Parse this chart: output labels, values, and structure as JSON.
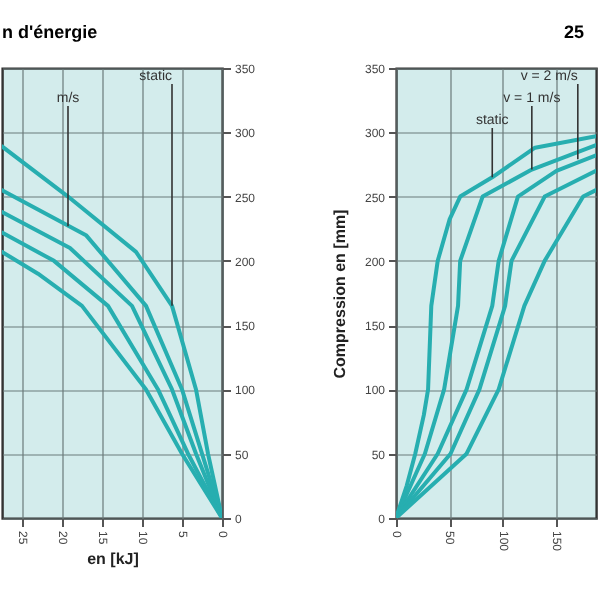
{
  "chart_data": [
    {
      "type": "line",
      "title": "n d'énergie",
      "xlabel": "en [kJ]",
      "xlim": [
        27.5,
        0
      ],
      "ylim": [
        0,
        350
      ],
      "xticks": [
        25,
        20,
        15,
        10,
        5,
        0
      ],
      "yticks": [
        0,
        50,
        100,
        150,
        200,
        250,
        300,
        350
      ],
      "grid": true,
      "series": [
        {
          "color": "#27aeb0",
          "x": [
            0,
            1.75,
            3.25,
            6.25,
            10.75,
            19.25,
            27.5
          ],
          "values": [
            0,
            50,
            100,
            165,
            207,
            250,
            289
          ]
        },
        {
          "color": "#27aeb0",
          "x": [
            0,
            2.5,
            5,
            9.5,
            17,
            27.5
          ],
          "values": [
            0,
            50,
            100,
            165,
            220,
            255
          ]
        },
        {
          "color": "#27aeb0",
          "x": [
            0,
            3.25,
            6.25,
            11.25,
            19,
            27.5
          ],
          "values": [
            0,
            50,
            100,
            165,
            210,
            238
          ]
        },
        {
          "color": "#27aeb0",
          "x": [
            0,
            4.25,
            8,
            14.25,
            21,
            27.5
          ],
          "values": [
            0,
            50,
            100,
            165,
            200,
            222
          ]
        },
        {
          "color": "#27aeb0",
          "x": [
            0,
            5,
            9.5,
            17.5,
            23,
            27.5
          ],
          "values": [
            0,
            50,
            100,
            165,
            190,
            207
          ]
        }
      ],
      "annotations": [
        {
          "text": "m/s",
          "x": 19.25,
          "y": 227
        },
        {
          "text": "static",
          "x": 6.25,
          "y": 165
        }
      ]
    },
    {
      "type": "line",
      "title": "25",
      "ylabel": "Compression en [mm]",
      "xlim": [
        0,
        187
      ],
      "ylim": [
        0,
        350
      ],
      "xticks": [
        0,
        50,
        100,
        150
      ],
      "yticks": [
        0,
        50,
        100,
        150,
        200,
        250,
        300,
        350
      ],
      "grid": true,
      "series": [
        {
          "color": "#27aeb0",
          "x": [
            0,
            10,
            18,
            26,
            30,
            33,
            39,
            50,
            60,
            90,
            130,
            187
          ],
          "values": [
            0,
            25,
            50,
            80,
            100,
            165,
            200,
            232,
            250,
            265,
            288,
            297
          ]
        },
        {
          "color": "#27aeb0",
          "x": [
            0,
            27,
            45,
            58,
            60,
            81,
            127,
            187
          ],
          "values": [
            0,
            50,
            100,
            165,
            200,
            250,
            271,
            290
          ]
        },
        {
          "color": "#27aeb0",
          "x": [
            0,
            39,
            66,
            90,
            96,
            114,
            150,
            187
          ],
          "values": [
            0,
            50,
            100,
            165,
            200,
            250,
            270,
            282
          ]
        },
        {
          "color": "#27aeb0",
          "x": [
            0,
            51,
            78,
            102,
            108,
            139,
            187
          ],
          "values": [
            0,
            50,
            100,
            165,
            200,
            250,
            270
          ]
        },
        {
          "color": "#27aeb0",
          "x": [
            0,
            66,
            96,
            120,
            139,
            175,
            187
          ],
          "values": [
            0,
            50,
            100,
            165,
            200,
            250,
            255
          ]
        }
      ],
      "annotations": [
        {
          "text": "static",
          "x": 90,
          "y": 265
        },
        {
          "text": "v = 1 m/s",
          "x": 127,
          "y": 271
        },
        {
          "text": "v = 2 m/s",
          "x": 170,
          "y": 279
        }
      ]
    }
  ]
}
